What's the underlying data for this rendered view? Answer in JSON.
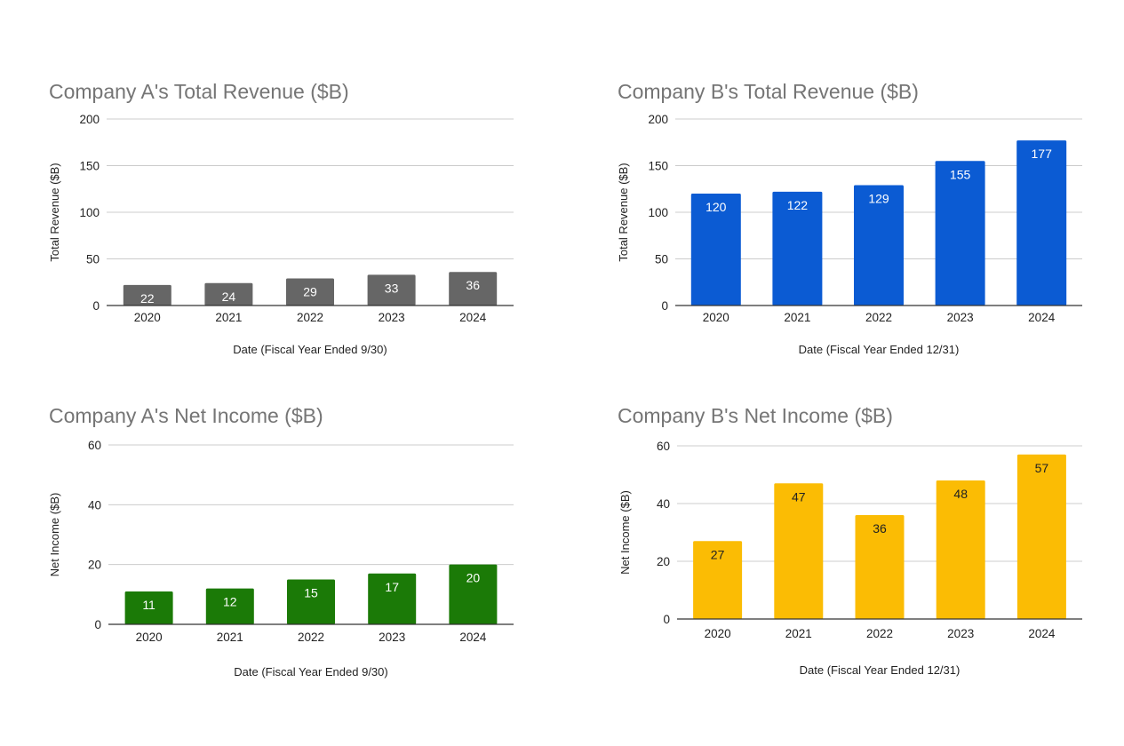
{
  "chart_data": [
    {
      "type": "bar",
      "title": "Company A's Total Revenue ($B)",
      "xlabel": "Date (Fiscal Year Ended 9/30)",
      "ylabel": "Total Revenue ($B)",
      "categories": [
        "2020",
        "2021",
        "2022",
        "2023",
        "2024"
      ],
      "values": [
        22,
        24,
        29,
        33,
        36
      ],
      "ylim": [
        0,
        200
      ],
      "yticks": [
        "0",
        "50",
        "100",
        "150",
        "200"
      ],
      "color": "#666666",
      "label_color": "#ffffff",
      "grid": true,
      "legend": "none"
    },
    {
      "type": "bar",
      "title": "Company B's Total Revenue ($B)",
      "xlabel": "Date (Fiscal Year Ended 12/31)",
      "ylabel": "Total Revenue ($B)",
      "categories": [
        "2020",
        "2021",
        "2022",
        "2023",
        "2024"
      ],
      "values": [
        120,
        122,
        129,
        155,
        177
      ],
      "ylim": [
        0,
        200
      ],
      "yticks": [
        "0",
        "50",
        "100",
        "150",
        "200"
      ],
      "color": "#0b5bd3",
      "label_color": "#ffffff",
      "grid": true,
      "legend": "none"
    },
    {
      "type": "bar",
      "title": "Company A's Net Income ($B)",
      "xlabel": "Date (Fiscal Year Ended 9/30)",
      "ylabel": "Net Income ($B)",
      "categories": [
        "2020",
        "2021",
        "2022",
        "2023",
        "2024"
      ],
      "values": [
        11,
        12,
        15,
        17,
        20
      ],
      "ylim": [
        0,
        60
      ],
      "yticks": [
        "0",
        "20",
        "40",
        "60"
      ],
      "color": "#1b7a07",
      "label_color": "#ffffff",
      "grid": true,
      "legend": "none"
    },
    {
      "type": "bar",
      "title": "Company B's Net Income ($B)",
      "xlabel": "Date (Fiscal Year Ended 12/31)",
      "ylabel": "Net Income ($B)",
      "categories": [
        "2020",
        "2021",
        "2022",
        "2023",
        "2024"
      ],
      "values": [
        27,
        47,
        36,
        48,
        57
      ],
      "ylim": [
        0,
        60
      ],
      "yticks": [
        "0",
        "20",
        "40",
        "60"
      ],
      "color": "#fbbc04",
      "label_color": "#222222",
      "grid": true,
      "legend": "none"
    }
  ]
}
